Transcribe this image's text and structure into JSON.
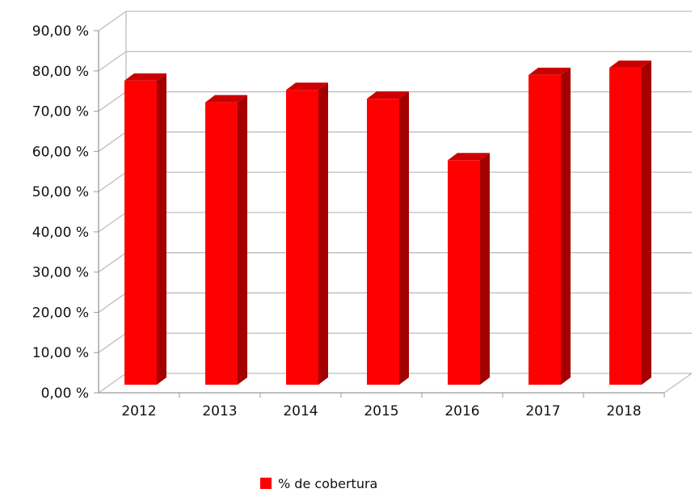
{
  "chart_data": {
    "type": "bar",
    "categories": [
      "2012",
      "2013",
      "2014",
      "2015",
      "2016",
      "2017",
      "2018"
    ],
    "series": [
      {
        "name": "% de cobertura",
        "values": [
          78.8,
          73.4,
          76.5,
          74.3,
          59.0,
          80.2,
          82.0
        ]
      }
    ],
    "yticks": [
      "0,00 %",
      "10,00 %",
      "20,00 %",
      "30,00 %",
      "40,00 %",
      "50,00 %",
      "60,00 %",
      "70,00 %",
      "80,00 %",
      "90,00 %"
    ],
    "ylim": [
      0,
      90
    ],
    "grid": true,
    "three_d": true,
    "legend_position": "bottom",
    "colors": {
      "bar_front": "#ff0000",
      "bar_side": "#a30000",
      "bar_top": "#cc0000",
      "grid": "#bdbdbd",
      "axis": "#999999"
    }
  }
}
